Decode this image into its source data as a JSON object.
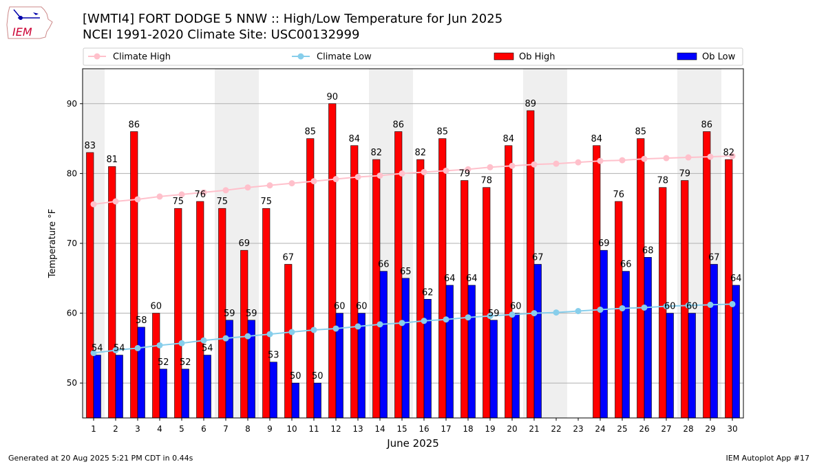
{
  "header": {
    "title_line1": "[WMTI4] FORT DODGE 5 NNW :: High/Low Temperature for Jun 2025",
    "title_line2": "NCEI 1991-2020 Climate Site: USC00132999",
    "logo_text": "IEM"
  },
  "footer": {
    "generated": "Generated at 20 Aug 2025 5:21 PM CDT in 0.44s",
    "app": "IEM Autoplot App #17"
  },
  "chart_data": {
    "type": "bar",
    "xlabel": "June 2025",
    "ylabel": "Temperature °F",
    "ylim": [
      45,
      95
    ],
    "yticks": [
      50,
      60,
      70,
      80,
      90
    ],
    "grid": true,
    "legend_placement": "top",
    "categories": [
      "1",
      "2",
      "3",
      "4",
      "5",
      "6",
      "7",
      "8",
      "9",
      "10",
      "11",
      "12",
      "13",
      "14",
      "15",
      "16",
      "17",
      "18",
      "19",
      "20",
      "21",
      "22",
      "23",
      "24",
      "25",
      "26",
      "27",
      "28",
      "29",
      "30"
    ],
    "series": [
      {
        "name": "Climate High",
        "kind": "line",
        "color": "#ffc0cb",
        "values": [
          75.6,
          76.0,
          76.3,
          76.7,
          77.0,
          77.3,
          77.6,
          78.0,
          78.3,
          78.6,
          78.9,
          79.2,
          79.5,
          79.7,
          80.0,
          80.2,
          80.4,
          80.6,
          80.9,
          81.1,
          81.3,
          81.4,
          81.6,
          81.8,
          81.9,
          82.1,
          82.2,
          82.3,
          82.4,
          82.5
        ]
      },
      {
        "name": "Climate Low",
        "kind": "line",
        "color": "#87ceeb",
        "values": [
          54.3,
          54.7,
          55.0,
          55.4,
          55.7,
          56.1,
          56.4,
          56.7,
          57.0,
          57.3,
          57.6,
          57.8,
          58.1,
          58.4,
          58.6,
          58.9,
          59.1,
          59.4,
          59.6,
          59.8,
          60.0,
          60.1,
          60.3,
          60.5,
          60.7,
          60.8,
          61.0,
          61.1,
          61.2,
          61.3
        ]
      },
      {
        "name": "Ob High",
        "kind": "bar",
        "color": "#ff0000",
        "values": [
          83,
          81,
          86,
          60,
          75,
          76,
          75,
          69,
          75,
          67,
          85,
          90,
          84,
          82,
          86,
          82,
          85,
          79,
          78,
          84,
          89,
          null,
          null,
          84,
          76,
          85,
          78,
          79,
          86,
          82
        ]
      },
      {
        "name": "Ob Low",
        "kind": "bar",
        "color": "#0000ff",
        "values": [
          54,
          54,
          58,
          52,
          52,
          54,
          59,
          59,
          53,
          50,
          50,
          60,
          60,
          66,
          65,
          62,
          64,
          64,
          59,
          60,
          67,
          null,
          null,
          69,
          66,
          68,
          60,
          60,
          67,
          64
        ]
      }
    ],
    "shaded_days": [
      1,
      7,
      8,
      14,
      15,
      21,
      22,
      28,
      29
    ],
    "shade_color": "#efefef"
  }
}
